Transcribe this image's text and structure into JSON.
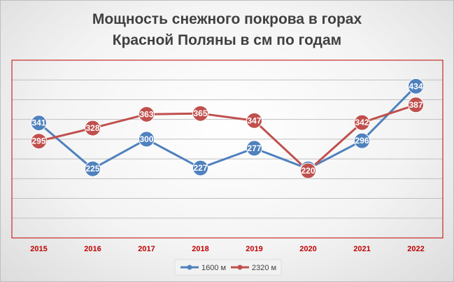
{
  "chart_data": {
    "type": "line",
    "title": "Мощность снежного покрова в горах Красной Поляны в см по годам",
    "title_lines": [
      "Мощность снежного покрова в горах",
      "Красной Поляны в см по годам"
    ],
    "categories": [
      "2015",
      "2016",
      "2017",
      "2018",
      "2019",
      "2020",
      "2021",
      "2022"
    ],
    "series": [
      {
        "name": "1600 м",
        "values": [
          341,
          225,
          300,
          227,
          277,
          225,
          296,
          434
        ],
        "color": "#4f81bd"
      },
      {
        "name": "2320 м",
        "values": [
          295,
          328,
          363,
          365,
          347,
          220,
          342,
          387
        ],
        "color": "#c0504d"
      }
    ],
    "ylim": [
      50,
      500
    ],
    "grid": true,
    "y_tick_labels_shown": false,
    "plot_border_color": "#c00000",
    "tick_label_color": "#c00000",
    "legend_position": "bottom"
  }
}
